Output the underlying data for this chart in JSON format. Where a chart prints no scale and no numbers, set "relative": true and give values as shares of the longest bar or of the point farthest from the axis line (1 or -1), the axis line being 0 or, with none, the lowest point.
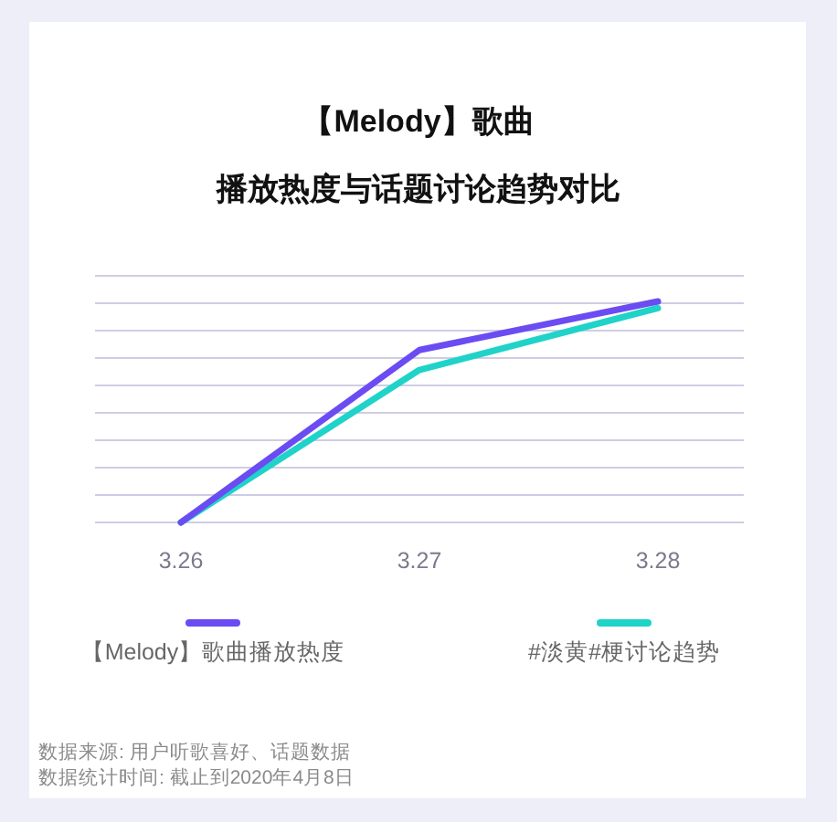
{
  "chart_data": {
    "type": "line",
    "title": "【Melody】歌曲",
    "subtitle": "播放热度与话题讨论趋势对比",
    "categories": [
      "3.26",
      "3.27",
      "3.28"
    ],
    "relative": true,
    "series": [
      {
        "name": "【Melody】歌曲播放热度",
        "color": "#6b4cf2",
        "values": [
          0,
          0.78,
          1
        ]
      },
      {
        "name": "#淡黄#梗讨论趋势",
        "color": "#1fd3c9",
        "values": [
          0,
          0.69,
          0.97
        ]
      }
    ],
    "grid": "y",
    "legend": "bottom",
    "annotations": [
      "数据来源: 用户听歌喜好、话题数据",
      "数据统计时间: 截止到2020年4月8日"
    ]
  }
}
